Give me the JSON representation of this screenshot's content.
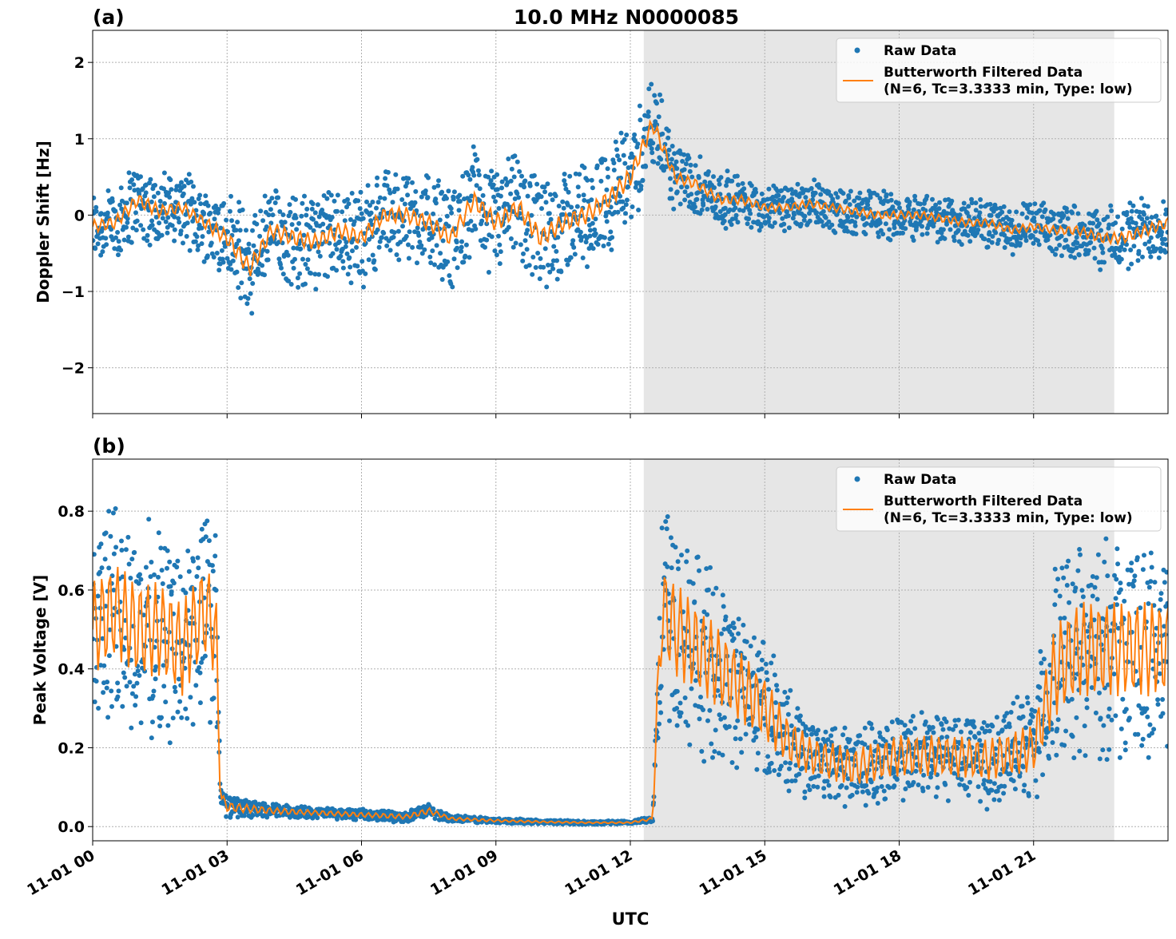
{
  "figure_title": "10.0 MHz N0000085",
  "xlabel": "UTC",
  "x_tick_labels": [
    "11-01 00",
    "11-01 03",
    "11-01 06",
    "11-01 09",
    "11-01 12",
    "11-01 15",
    "11-01 18",
    "11-01 21"
  ],
  "x_ticks_hours": [
    0,
    3,
    6,
    9,
    12,
    15,
    18,
    21
  ],
  "xlim_hours": [
    0,
    24
  ],
  "shaded_interval_hours": [
    12.3,
    22.8
  ],
  "colors": {
    "raw": "#1f77b4",
    "filtered": "#ff7f0e",
    "shade": "#e6e6e6"
  },
  "chart_data": [
    {
      "type": "scatter+line",
      "panel_label": "(a)",
      "ylabel": "Doppler Shift [Hz]",
      "ylim": [
        -2.6,
        2.42
      ],
      "y_ticks": [
        -2,
        -1,
        0,
        1,
        2
      ],
      "y_tick_labels": [
        "−2",
        "−1",
        "0",
        "1",
        "2"
      ],
      "grid": true,
      "legend": "top-right",
      "legend_entries": [
        "Raw Data",
        "Butterworth Filtered Data",
        "(N=6, Tc=3.3333 min, Type: low)"
      ],
      "filtered_hours": [
        0,
        0.5,
        1,
        1.5,
        2,
        2.5,
        3,
        3.5,
        4,
        4.5,
        5,
        5.5,
        6,
        6.5,
        7,
        7.5,
        8,
        8.5,
        9,
        9.5,
        10,
        10.5,
        11,
        11.5,
        12,
        12.5,
        13,
        13.5,
        14,
        14.5,
        15,
        15.5,
        16,
        16.5,
        17,
        17.5,
        18,
        18.5,
        19,
        19.5,
        20,
        20.5,
        21,
        21.5,
        22,
        22.5,
        23,
        23.5,
        24
      ],
      "filtered_values": [
        -0.15,
        -0.1,
        0.2,
        0.05,
        0.1,
        -0.1,
        -0.3,
        -0.7,
        -0.2,
        -0.3,
        -0.35,
        -0.2,
        -0.3,
        0.0,
        0.0,
        -0.1,
        -0.3,
        0.2,
        -0.1,
        0.1,
        -0.3,
        -0.1,
        0.0,
        0.2,
        0.5,
        1.2,
        0.5,
        0.4,
        0.2,
        0.2,
        0.1,
        0.1,
        0.15,
        0.1,
        0.05,
        0.0,
        0.0,
        0.0,
        -0.05,
        -0.1,
        -0.1,
        -0.2,
        -0.15,
        -0.2,
        -0.2,
        -0.3,
        -0.3,
        -0.2,
        -0.1
      ],
      "raw_spread_hz": [
        0.55,
        0.55,
        0.6,
        0.55,
        0.5,
        0.55,
        0.7,
        0.8,
        0.7,
        0.7,
        0.7,
        0.7,
        0.7,
        0.65,
        0.7,
        0.7,
        0.75,
        0.75,
        0.8,
        0.8,
        0.85,
        0.8,
        0.8,
        0.8,
        0.85,
        0.7,
        0.5,
        0.45,
        0.4,
        0.4,
        0.35,
        0.35,
        0.35,
        0.35,
        0.35,
        0.35,
        0.35,
        0.35,
        0.35,
        0.35,
        0.35,
        0.35,
        0.35,
        0.35,
        0.4,
        0.45,
        0.5,
        0.5,
        0.5
      ]
    },
    {
      "type": "scatter+line",
      "panel_label": "(b)",
      "ylabel": "Peak Voltage [V]",
      "ylim": [
        -0.036,
        0.932
      ],
      "y_ticks": [
        0,
        0.2,
        0.4,
        0.6,
        0.8
      ],
      "y_tick_labels": [
        "0.0",
        "0.2",
        "0.4",
        "0.6",
        "0.8"
      ],
      "grid": true,
      "legend": "top-right",
      "legend_entries": [
        "Raw Data",
        "Butterworth Filtered Data",
        "(N=6, Tc=3.3333 min, Type: low)"
      ],
      "filtered_hours": [
        0,
        0.5,
        1,
        1.5,
        2,
        2.5,
        2.75,
        2.85,
        3,
        4,
        5,
        6,
        7,
        7.5,
        8,
        9,
        10,
        11,
        12,
        12.5,
        12.6,
        12.7,
        13,
        13.5,
        14,
        14.5,
        15,
        15.5,
        16,
        17,
        18,
        19,
        20,
        21,
        21.5,
        22,
        23,
        24
      ],
      "filtered_values": [
        0.5,
        0.55,
        0.5,
        0.5,
        0.45,
        0.55,
        0.5,
        0.08,
        0.05,
        0.04,
        0.035,
        0.03,
        0.025,
        0.04,
        0.02,
        0.015,
        0.012,
        0.01,
        0.01,
        0.02,
        0.3,
        0.55,
        0.5,
        0.45,
        0.4,
        0.35,
        0.3,
        0.22,
        0.18,
        0.15,
        0.18,
        0.18,
        0.17,
        0.2,
        0.4,
        0.45,
        0.45,
        0.45
      ],
      "raw_spread_v": [
        0.3,
        0.3,
        0.3,
        0.3,
        0.3,
        0.3,
        0.3,
        0.03,
        0.03,
        0.02,
        0.015,
        0.015,
        0.015,
        0.02,
        0.01,
        0.008,
        0.006,
        0.005,
        0.005,
        0.01,
        0.15,
        0.3,
        0.3,
        0.28,
        0.25,
        0.22,
        0.2,
        0.15,
        0.12,
        0.12,
        0.13,
        0.13,
        0.13,
        0.15,
        0.3,
        0.3,
        0.3,
        0.3
      ]
    }
  ]
}
